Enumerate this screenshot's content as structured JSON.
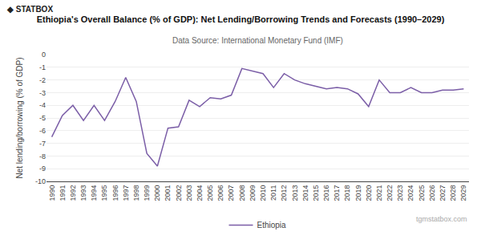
{
  "chart_data": {
    "type": "line",
    "title": "Ethiopia's Overall Balance (% of GDP): Net Lending/Borrowing Trends and Forecasts (1990–2029)",
    "subtitle": "Data Source: International Monetary Fund (IMF)",
    "ylabel": "Net lending/borrowing (% of GDP)",
    "logo": "◆ STATBOX",
    "watermark": "tgmstatbox.com",
    "x": [
      1990,
      1991,
      1992,
      1993,
      1994,
      1995,
      1996,
      1997,
      1998,
      1999,
      2000,
      2001,
      2002,
      2003,
      2004,
      2005,
      2006,
      2007,
      2008,
      2009,
      2010,
      2011,
      2012,
      2013,
      2014,
      2015,
      2016,
      2017,
      2018,
      2019,
      2020,
      2021,
      2022,
      2023,
      2024,
      2025,
      2026,
      2027,
      2028,
      2029
    ],
    "series": [
      {
        "name": "Ethiopia",
        "color": "#7B5EA7",
        "values": [
          -6.5,
          -4.8,
          -4.0,
          -5.2,
          -4.0,
          -5.2,
          -3.7,
          -1.8,
          -3.7,
          -7.8,
          -8.8,
          -5.8,
          -5.7,
          -3.6,
          -4.1,
          -3.4,
          -3.5,
          -3.2,
          -1.1,
          -1.3,
          -1.5,
          -2.6,
          -1.5,
          -2.0,
          -2.3,
          -2.5,
          -2.7,
          -2.6,
          -2.7,
          -3.1,
          -4.1,
          -2.0,
          -3.0,
          -3.0,
          -2.6,
          -3.0,
          -3.0,
          -2.8,
          -2.8,
          -2.7
        ]
      }
    ],
    "xlim": [
      1989.5,
      2029.5
    ],
    "xticks": [
      1990,
      1991,
      1992,
      1993,
      1994,
      1995,
      1996,
      1997,
      1998,
      1999,
      2000,
      2001,
      2002,
      2003,
      2004,
      2005,
      2006,
      2007,
      2008,
      2009,
      2010,
      2011,
      2012,
      2013,
      2014,
      2015,
      2016,
      2017,
      2018,
      2019,
      2020,
      2021,
      2022,
      2023,
      2024,
      2025,
      2026,
      2027,
      2028,
      2029
    ],
    "ylim": [
      -10,
      0
    ],
    "yticks": [
      0,
      -1,
      -2,
      -3,
      -4,
      -5,
      -6,
      -7,
      -8,
      -9,
      -10
    ],
    "grid": "y",
    "legend": "bottom"
  }
}
